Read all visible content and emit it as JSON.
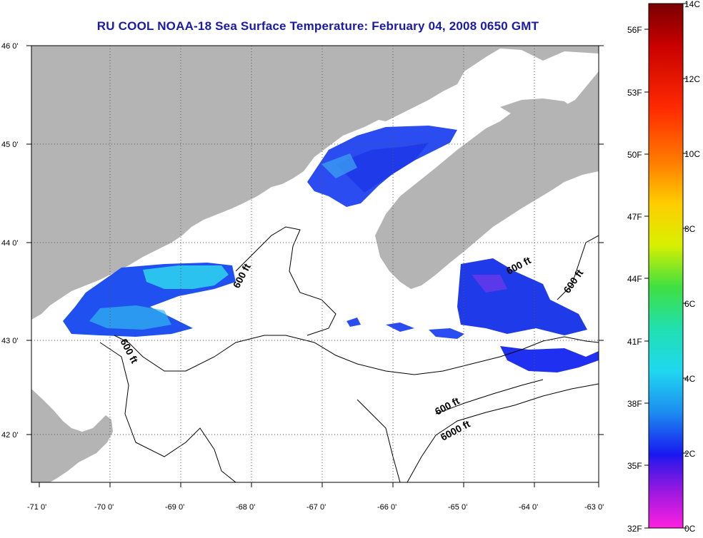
{
  "title": "RU COOL  NOAA-18  Sea Surface Temperature:  February 04, 2008 0650 GMT",
  "map": {
    "lon_labels": [
      "-71 0'",
      "-70 0'",
      "-69 0'",
      "-68 0'",
      "-67 0'",
      "-66 0'",
      "-65 0'",
      "-64 0'",
      "-63 0'"
    ],
    "lat_labels": [
      "46 0'",
      "45 0'",
      "44 0'",
      "43 0'",
      "42 0'"
    ],
    "contour_labels": [
      "600 ft",
      "600 ft",
      "600 ft",
      "600 ft",
      "6000 ft",
      "600 ft"
    ],
    "colors": {
      "land": "#b4b4b4",
      "ocean_nodata": "#ffffff",
      "sst_cold": "#1a2cf0",
      "sst_warm": "#2fd6f0"
    }
  },
  "colorbar": {
    "celsius_labels": [
      "14C",
      "12C",
      "10C",
      "8C",
      "6C",
      "4C",
      "2C",
      "0C"
    ],
    "fahrenheit_labels": [
      "56F",
      "53F",
      "50F",
      "47F",
      "44F",
      "41F",
      "38F",
      "35F",
      "32F"
    ]
  }
}
